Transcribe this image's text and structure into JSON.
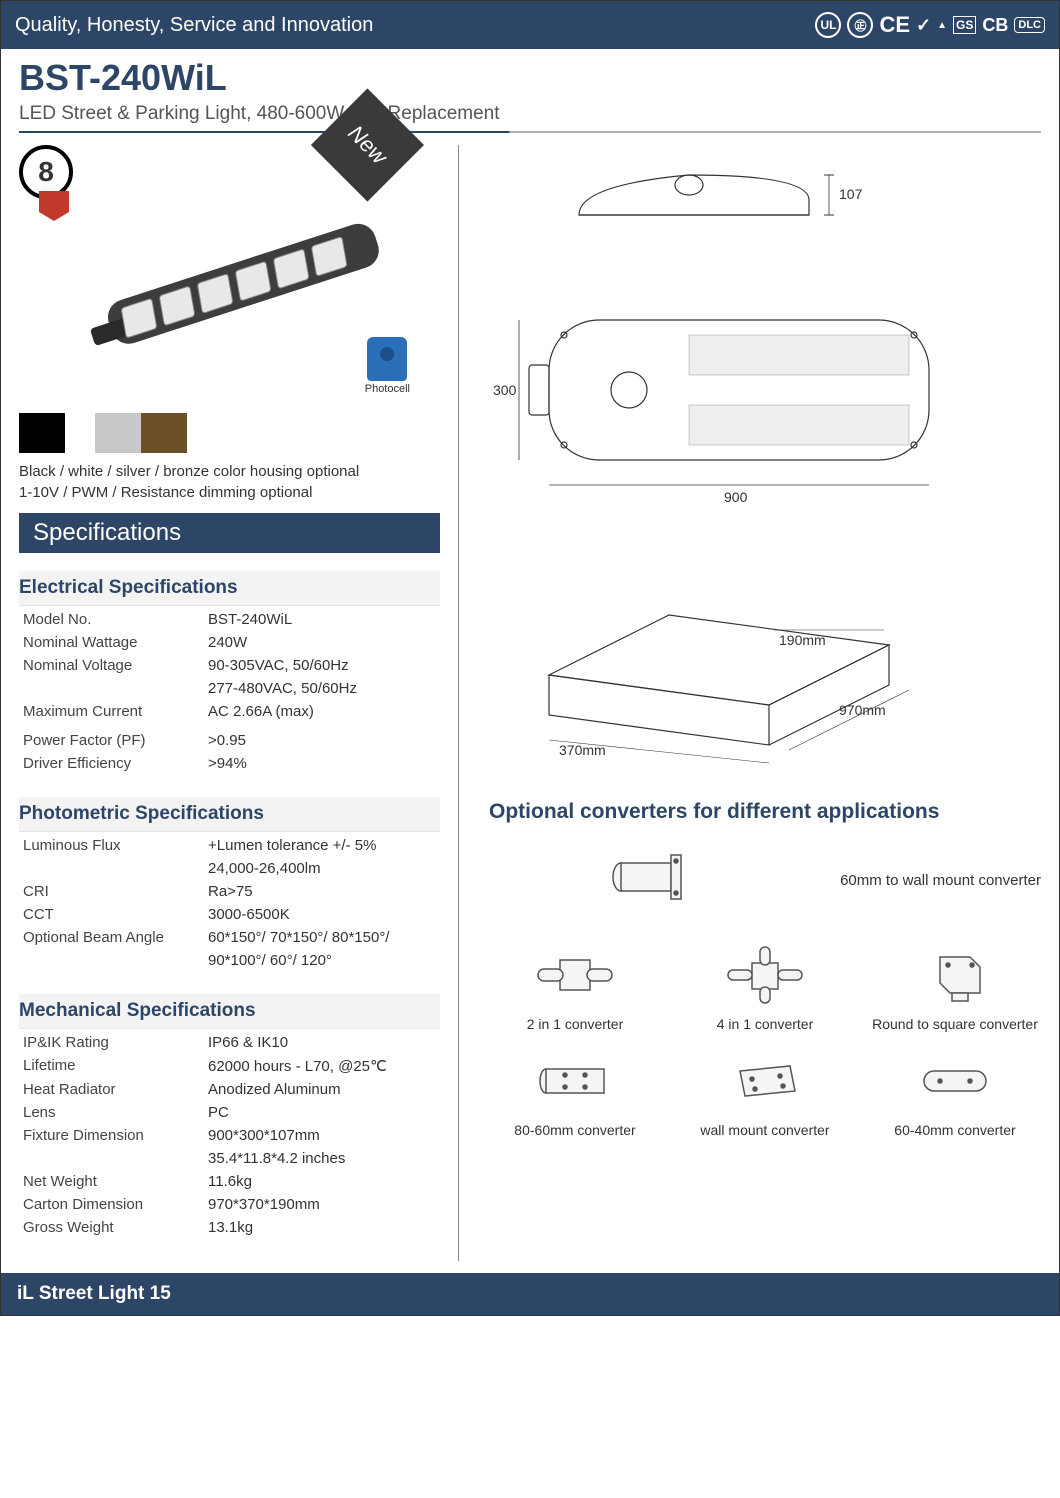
{
  "header": {
    "tagline": "Quality, Honesty, Service and Innovation",
    "certifications": [
      "UL",
      "CCC",
      "CE",
      "✓",
      "TUV",
      "GS",
      "CB",
      "DLC"
    ]
  },
  "product": {
    "title": "BST-240WiL",
    "subtitle": "LED Street & Parking Light, 480-600W HID Replacement",
    "new_label": "New",
    "warranty_years": "8",
    "photocell_label": "Photocell"
  },
  "swatches": [
    {
      "color": "#000000"
    },
    {
      "color": "#c8c8c8"
    },
    {
      "color": "#6b5028"
    }
  ],
  "notes": {
    "line1": "Black / white / silver / bronze color housing optional",
    "line2": "1-10V / PWM / Resistance dimming optional"
  },
  "specifications_label": "Specifications",
  "spec_sections": [
    {
      "heading": "Electrical Specifications",
      "rows": [
        {
          "label": "Model No.",
          "value": "BST-240WiL"
        },
        {
          "label": "Nominal Wattage",
          "value": "240W"
        },
        {
          "label": "Nominal Voltage",
          "value": "90-305VAC, 50/60Hz"
        },
        {
          "label": "",
          "value": "277-480VAC, 50/60Hz"
        },
        {
          "label": "Maximum Current",
          "value": "AC 2.66A (max)"
        },
        {
          "label": "",
          "value": ""
        },
        {
          "label": "Power Factor (PF)",
          "value": ">0.95"
        },
        {
          "label": "Driver Efficiency",
          "value": ">94%"
        }
      ]
    },
    {
      "heading": "Photometric Specifications",
      "rows": [
        {
          "label": "Luminous Flux",
          "value": " +Lumen tolerance +/- 5%"
        },
        {
          "label": "",
          "value": "24,000-26,400lm"
        },
        {
          "label": "CRI",
          "value": "Ra>75"
        },
        {
          "label": "CCT",
          "value": "3000-6500K"
        },
        {
          "label": "Optional Beam Angle",
          "value": "60*150°/ 70*150°/ 80*150°/"
        },
        {
          "label": "",
          "value": "90*100°/ 60°/ 120°"
        }
      ]
    },
    {
      "heading": "Mechanical Specifications",
      "rows": [
        {
          "label": "IP&IK Rating",
          "value": "IP66 & IK10"
        },
        {
          "label": "Lifetime",
          "value": "62000 hours - L70, @25℃"
        },
        {
          "label": "Heat Radiator",
          "value": "Anodized Aluminum"
        },
        {
          "label": "Lens",
          "value": "PC"
        },
        {
          "label": "Fixture Dimension",
          "value": "900*300*107mm"
        },
        {
          "label": "",
          "value": "35.4*11.8*4.2 inches"
        },
        {
          "label": "Net Weight",
          "value": "11.6kg"
        },
        {
          "label": "Carton Dimension",
          "value": "970*370*190mm"
        },
        {
          "label": "Gross Weight",
          "value": "13.1kg"
        }
      ]
    }
  ],
  "drawings": {
    "side_view": {
      "height_mm": "107"
    },
    "top_view": {
      "width_mm": "300",
      "length_mm": "900"
    },
    "carton": {
      "w": "370mm",
      "h": "190mm",
      "l": "970mm"
    }
  },
  "converters": {
    "title": "Optional converters for different applications",
    "primary": "60mm to wall mount converter",
    "items": [
      "2 in 1 converter",
      "4 in 1 converter",
      "Round to square converter",
      "80-60mm converter",
      "wall mount converter",
      "60-40mm converter"
    ]
  },
  "footer": "iL Street Light 15",
  "colors": {
    "brand": "#2d4566",
    "light_bg": "#f3f3f3",
    "lamp_body": "#3d3d3d",
    "lamp_led": "#e8e8e8"
  }
}
